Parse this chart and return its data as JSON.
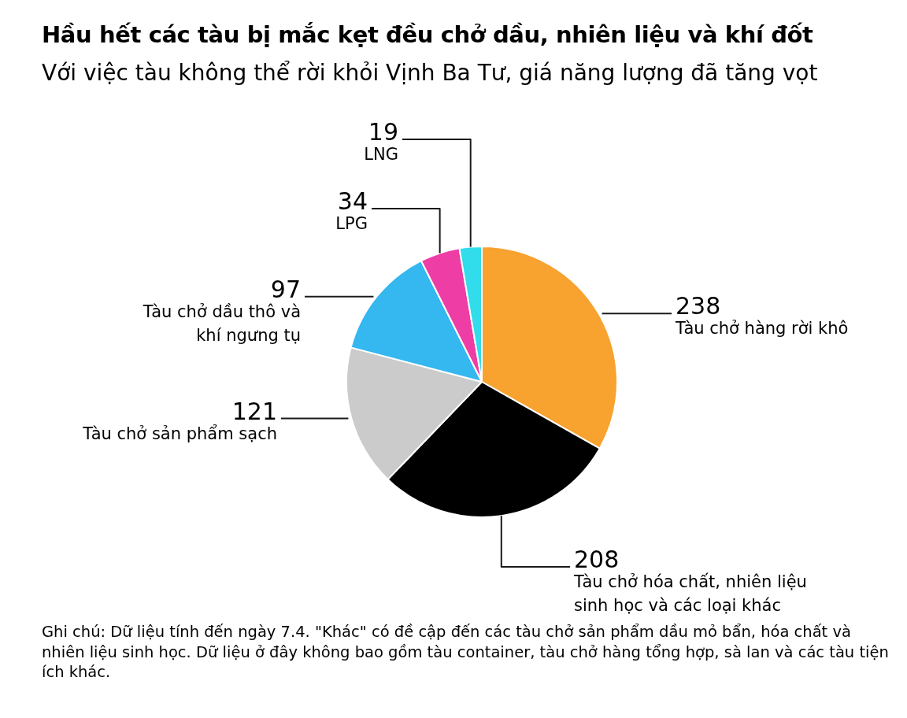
{
  "chart_data": {
    "type": "pie",
    "title": "Hầu hết các tàu bị mắc kẹt đều chở dầu, nhiên liệu và khí đốt",
    "subtitle": "Với việc tàu không thể rời khỏi Vịnh Ba Tư, giá năng lượng đã tăng vọt",
    "categories": [
      "Tàu chở hàng rời khô",
      "Tàu chở hóa chất, nhiên liệu sinh học và các loại khác",
      "Tàu chở sản phẩm sạch",
      "Tàu chở dầu thô và khí ngưng tụ",
      "LPG",
      "LNG"
    ],
    "values": [
      238,
      208,
      121,
      97,
      34,
      19
    ],
    "colors": [
      "#f8a22f",
      "#000000",
      "#cbcbcb",
      "#35b7f0",
      "#ee3da4",
      "#31dceb"
    ],
    "data_labels": true,
    "annotations": [
      "Ghi chú: Dữ liệu tính đến ngày 7.4. \"Khác\" có đề cập đến các tàu chở sản phẩm dầu mỏ bẩn, hóa chất và nhiên liệu sinh học. Dữ liệu ở đây không bao gồm tàu container, tàu chở hàng tổng hợp, sà lan và các tàu tiện ích khác."
    ]
  }
}
